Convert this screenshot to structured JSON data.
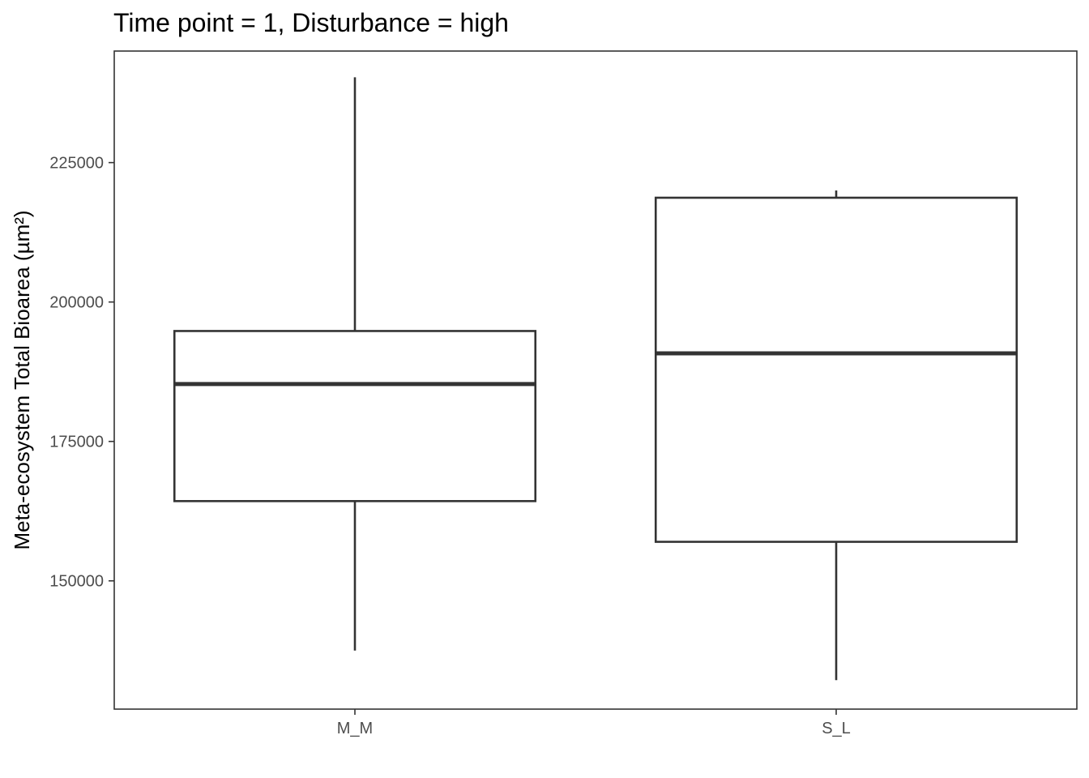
{
  "chart_data": {
    "type": "box",
    "title": "Time point = 1, Disturbance = high",
    "xlabel": "",
    "ylabel": "Meta-ecosystem Total Bioarea (µm²)",
    "ylim": [
      127000,
      245000
    ],
    "yticks": [
      150000,
      175000,
      200000,
      225000
    ],
    "ytick_labels": [
      "150000",
      "175000",
      "200000",
      "225000"
    ],
    "categories": [
      "M_M",
      "S_L"
    ],
    "boxes": [
      {
        "category": "M_M",
        "whisker_low": 137500,
        "q1": 164300,
        "median": 185300,
        "q3": 194800,
        "whisker_high": 240300
      },
      {
        "category": "S_L",
        "whisker_low": 132200,
        "q1": 157000,
        "median": 190800,
        "q3": 218700,
        "whisker_high": 220000
      }
    ],
    "grid": false,
    "legend": "none",
    "colors": {
      "line": "#333333",
      "box_fill": "#ffffff",
      "tick_text": "#4d4d4d",
      "text": "#000000"
    }
  }
}
